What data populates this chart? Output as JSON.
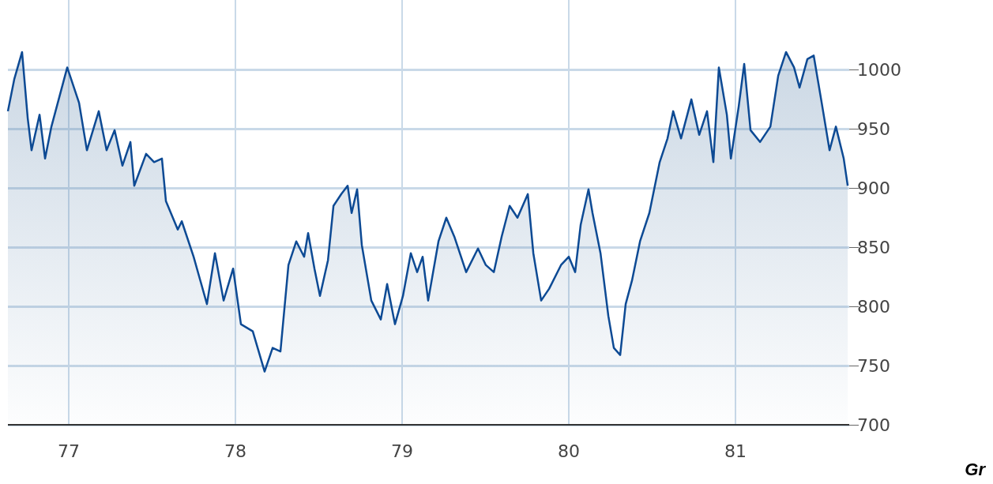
{
  "chart_data": {
    "type": "area",
    "x": [
      76.635,
      76.673,
      76.72,
      76.754,
      76.777,
      76.825,
      76.858,
      76.896,
      76.991,
      77.062,
      77.109,
      77.18,
      77.227,
      77.275,
      77.322,
      77.37,
      77.393,
      77.464,
      77.512,
      77.559,
      77.583,
      77.654,
      77.678,
      77.749,
      77.829,
      77.877,
      77.929,
      77.986,
      78.033,
      78.104,
      78.175,
      78.223,
      78.27,
      78.318,
      78.365,
      78.412,
      78.436,
      78.474,
      78.507,
      78.555,
      78.588,
      78.635,
      78.673,
      78.697,
      78.73,
      78.758,
      78.815,
      78.872,
      78.91,
      78.957,
      79.005,
      79.052,
      79.09,
      79.123,
      79.156,
      79.218,
      79.265,
      79.313,
      79.384,
      79.455,
      79.502,
      79.55,
      79.597,
      79.645,
      79.692,
      79.754,
      79.787,
      79.834,
      79.882,
      79.953,
      80.0,
      80.038,
      80.071,
      80.118,
      80.142,
      80.19,
      80.237,
      80.27,
      80.308,
      80.341,
      80.379,
      80.427,
      80.483,
      80.545,
      80.592,
      80.626,
      80.673,
      80.735,
      80.782,
      80.829,
      80.867,
      80.9,
      80.948,
      80.972,
      81.019,
      81.052,
      81.09,
      81.147,
      81.209,
      81.256,
      81.303,
      81.351,
      81.384,
      81.431,
      81.469,
      81.517,
      81.564,
      81.602,
      81.649,
      81.673
    ],
    "series": [
      {
        "color": "#0d4a94",
        "values": [
          965,
          992,
          1015,
          959,
          932,
          962,
          925,
          952,
          1002,
          972,
          932,
          965,
          932,
          949,
          919,
          939,
          902,
          929,
          922,
          925,
          889,
          865,
          872,
          842,
          802,
          845,
          805,
          832,
          785,
          779,
          745,
          765,
          762,
          835,
          855,
          842,
          862,
          832,
          809,
          839,
          885,
          895,
          902,
          879,
          899,
          852,
          805,
          789,
          819,
          785,
          809,
          845,
          829,
          842,
          805,
          855,
          875,
          859,
          829,
          849,
          835,
          829,
          859,
          885,
          875,
          895,
          845,
          805,
          815,
          835,
          842,
          829,
          869,
          899,
          879,
          845,
          792,
          765,
          759,
          802,
          822,
          855,
          879,
          922,
          942,
          965,
          942,
          975,
          945,
          965,
          922,
          1002,
          962,
          925,
          969,
          1005,
          949,
          939,
          952,
          995,
          1015,
          1002,
          985,
          1009,
          1012,
          972,
          932,
          952,
          925,
          902
        ]
      }
    ],
    "xlim": [
      76.635,
      81.682
    ],
    "xticks": [
      77,
      78,
      79,
      80,
      81
    ],
    "ylim": [
      700,
      1059
    ],
    "yticks": [
      700,
      750,
      800,
      850,
      900,
      950,
      1000
    ],
    "grid": true,
    "marker": "none",
    "annotations": [
      "Gr"
    ]
  }
}
